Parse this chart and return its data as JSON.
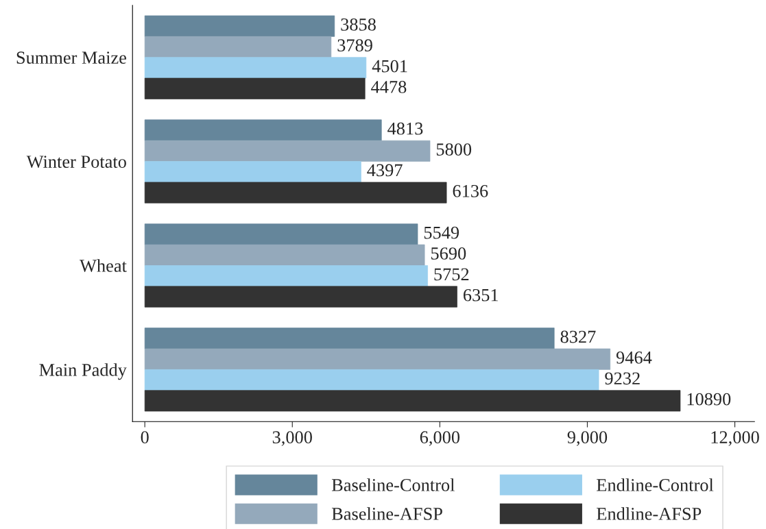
{
  "chart_data": {
    "type": "bar",
    "orientation": "horizontal",
    "categories": [
      "Summer Maize",
      "Winter Potato",
      "Wheat",
      "Main Paddy"
    ],
    "series": [
      {
        "name": "Baseline-Control",
        "color": "#65869b",
        "values": [
          3858,
          4813,
          5549,
          8327
        ]
      },
      {
        "name": "Baseline-AFSP",
        "color": "#94a9bb",
        "values": [
          3789,
          5800,
          5690,
          9464
        ]
      },
      {
        "name": "Endline-Control",
        "color": "#9acfee",
        "values": [
          4501,
          4397,
          5752,
          9232
        ]
      },
      {
        "name": "Endline-AFSP",
        "color": "#333333",
        "values": [
          4478,
          6136,
          6351,
          10890
        ]
      }
    ],
    "xlim": [
      -250,
      12400
    ],
    "xticks": [
      0,
      {
        "value": 3000,
        "label": "3,000"
      },
      {
        "value": 6000,
        "label": "6,000"
      },
      {
        "value": 9000,
        "label": "9,000"
      },
      {
        "value": 12000,
        "label": "12,000"
      }
    ],
    "data_labels": true,
    "legend": "bottom",
    "grid": false
  }
}
